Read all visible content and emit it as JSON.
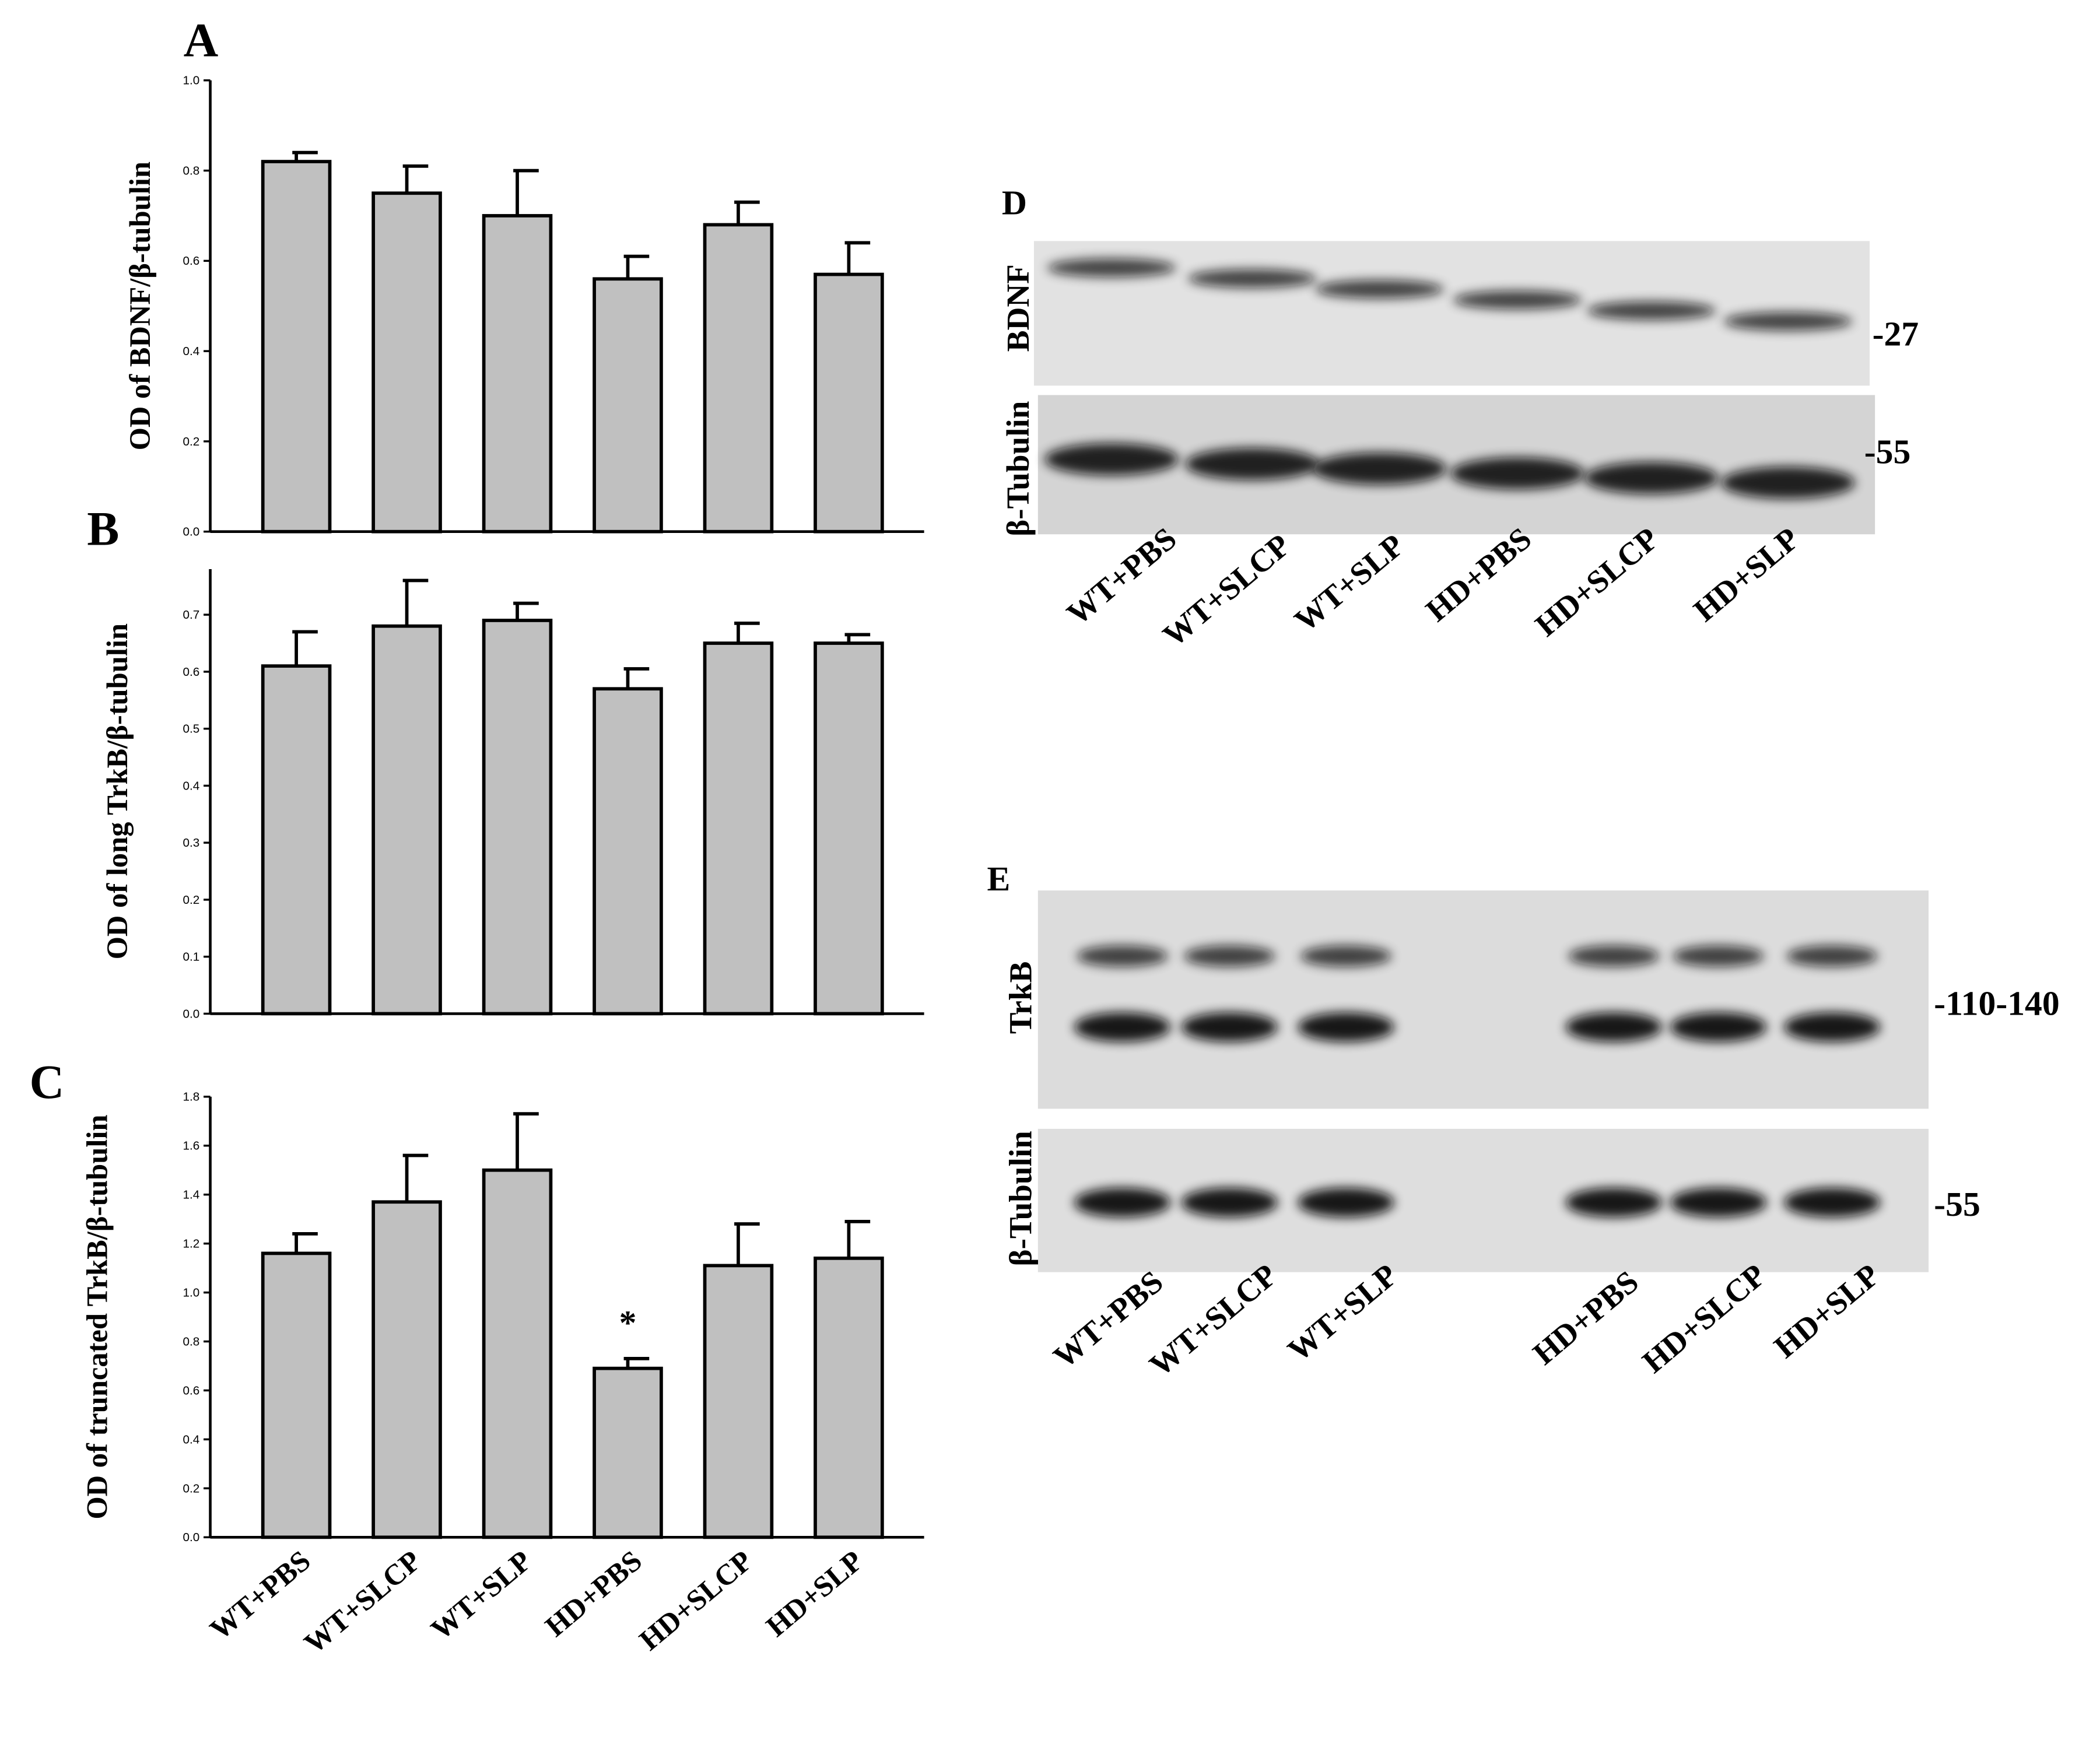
{
  "chart_data": [
    {
      "type": "bar",
      "panel_label": "A",
      "y_label": "OD of BDNF/β-tubulin",
      "categories": [
        null,
        null,
        null,
        null,
        null,
        null
      ],
      "values": [
        0.82,
        0.75,
        0.7,
        0.56,
        0.68,
        0.57
      ],
      "errors": [
        0.02,
        0.06,
        0.1,
        0.05,
        0.05,
        0.07
      ],
      "color": "#c0c0c0",
      "ylim": [
        0,
        1.0
      ],
      "yticks": [
        {
          "value": 0,
          "label": "0.0"
        },
        0.2,
        0.4,
        0.6,
        0.8,
        {
          "value": 1.0,
          "label": "1.0"
        }
      ]
    },
    {
      "type": "bar",
      "panel_label": "B",
      "y_label": "OD of long TrkB/β-tubulin",
      "categories": [
        null,
        null,
        null,
        null,
        null,
        null
      ],
      "values": [
        0.61,
        0.68,
        0.69,
        0.57,
        0.65,
        0.65
      ],
      "errors": [
        0.06,
        0.08,
        0.03,
        0.035,
        0.035,
        0.015
      ],
      "color": "#c0c0c0",
      "ylim": [
        0,
        0.78
      ],
      "yticks": [
        {
          "value": 0,
          "label": "0.0"
        },
        0.1,
        0.2,
        0.3,
        0.4,
        0.5,
        0.6,
        0.7
      ]
    },
    {
      "type": "bar",
      "panel_label": "C",
      "y_label": "OD of truncated TrkB/β-tubulin",
      "categories": [
        "WT+PBS",
        "WT+SLCP",
        "WT+SLP",
        "HD+PBS",
        "HD+SLCP",
        "HD+SLP"
      ],
      "values": [
        1.16,
        1.37,
        1.5,
        0.69,
        1.11,
        1.14
      ],
      "errors": [
        0.08,
        0.19,
        0.23,
        0.04,
        0.17,
        0.15
      ],
      "color": "#c0c0c0",
      "ylim": [
        0,
        1.8
      ],
      "yticks": [
        {
          "value": 0,
          "label": "0.0"
        },
        0.2,
        0.4,
        0.6,
        0.8,
        {
          "value": 1.0,
          "label": "1.0"
        },
        1.2,
        1.4,
        1.6,
        1.8
      ],
      "annotations": [
        {
          "text": "*",
          "x": "HD+PBS"
        }
      ]
    }
  ],
  "blots": [
    {
      "panel_label": "D",
      "rows": [
        {
          "name": "BDNF",
          "marker": "-27"
        },
        {
          "name": "β-Tubulin",
          "marker": "-55"
        }
      ],
      "lanes": [
        "WT+PBS",
        "WT+SLCP",
        "WT+SLP",
        "HD+PBS",
        "HD+SLCP",
        "HD+SLP"
      ]
    },
    {
      "panel_label": "E",
      "rows": [
        {
          "name": "TrkB",
          "marker": "-110-140"
        },
        {
          "name": "β-Tubulin",
          "marker": "-55"
        }
      ],
      "lanes": [
        "WT+PBS",
        "WT+SLCP",
        "WT+SLP",
        "HD+PBS",
        "HD+SLCP",
        "HD+SLP"
      ]
    }
  ]
}
